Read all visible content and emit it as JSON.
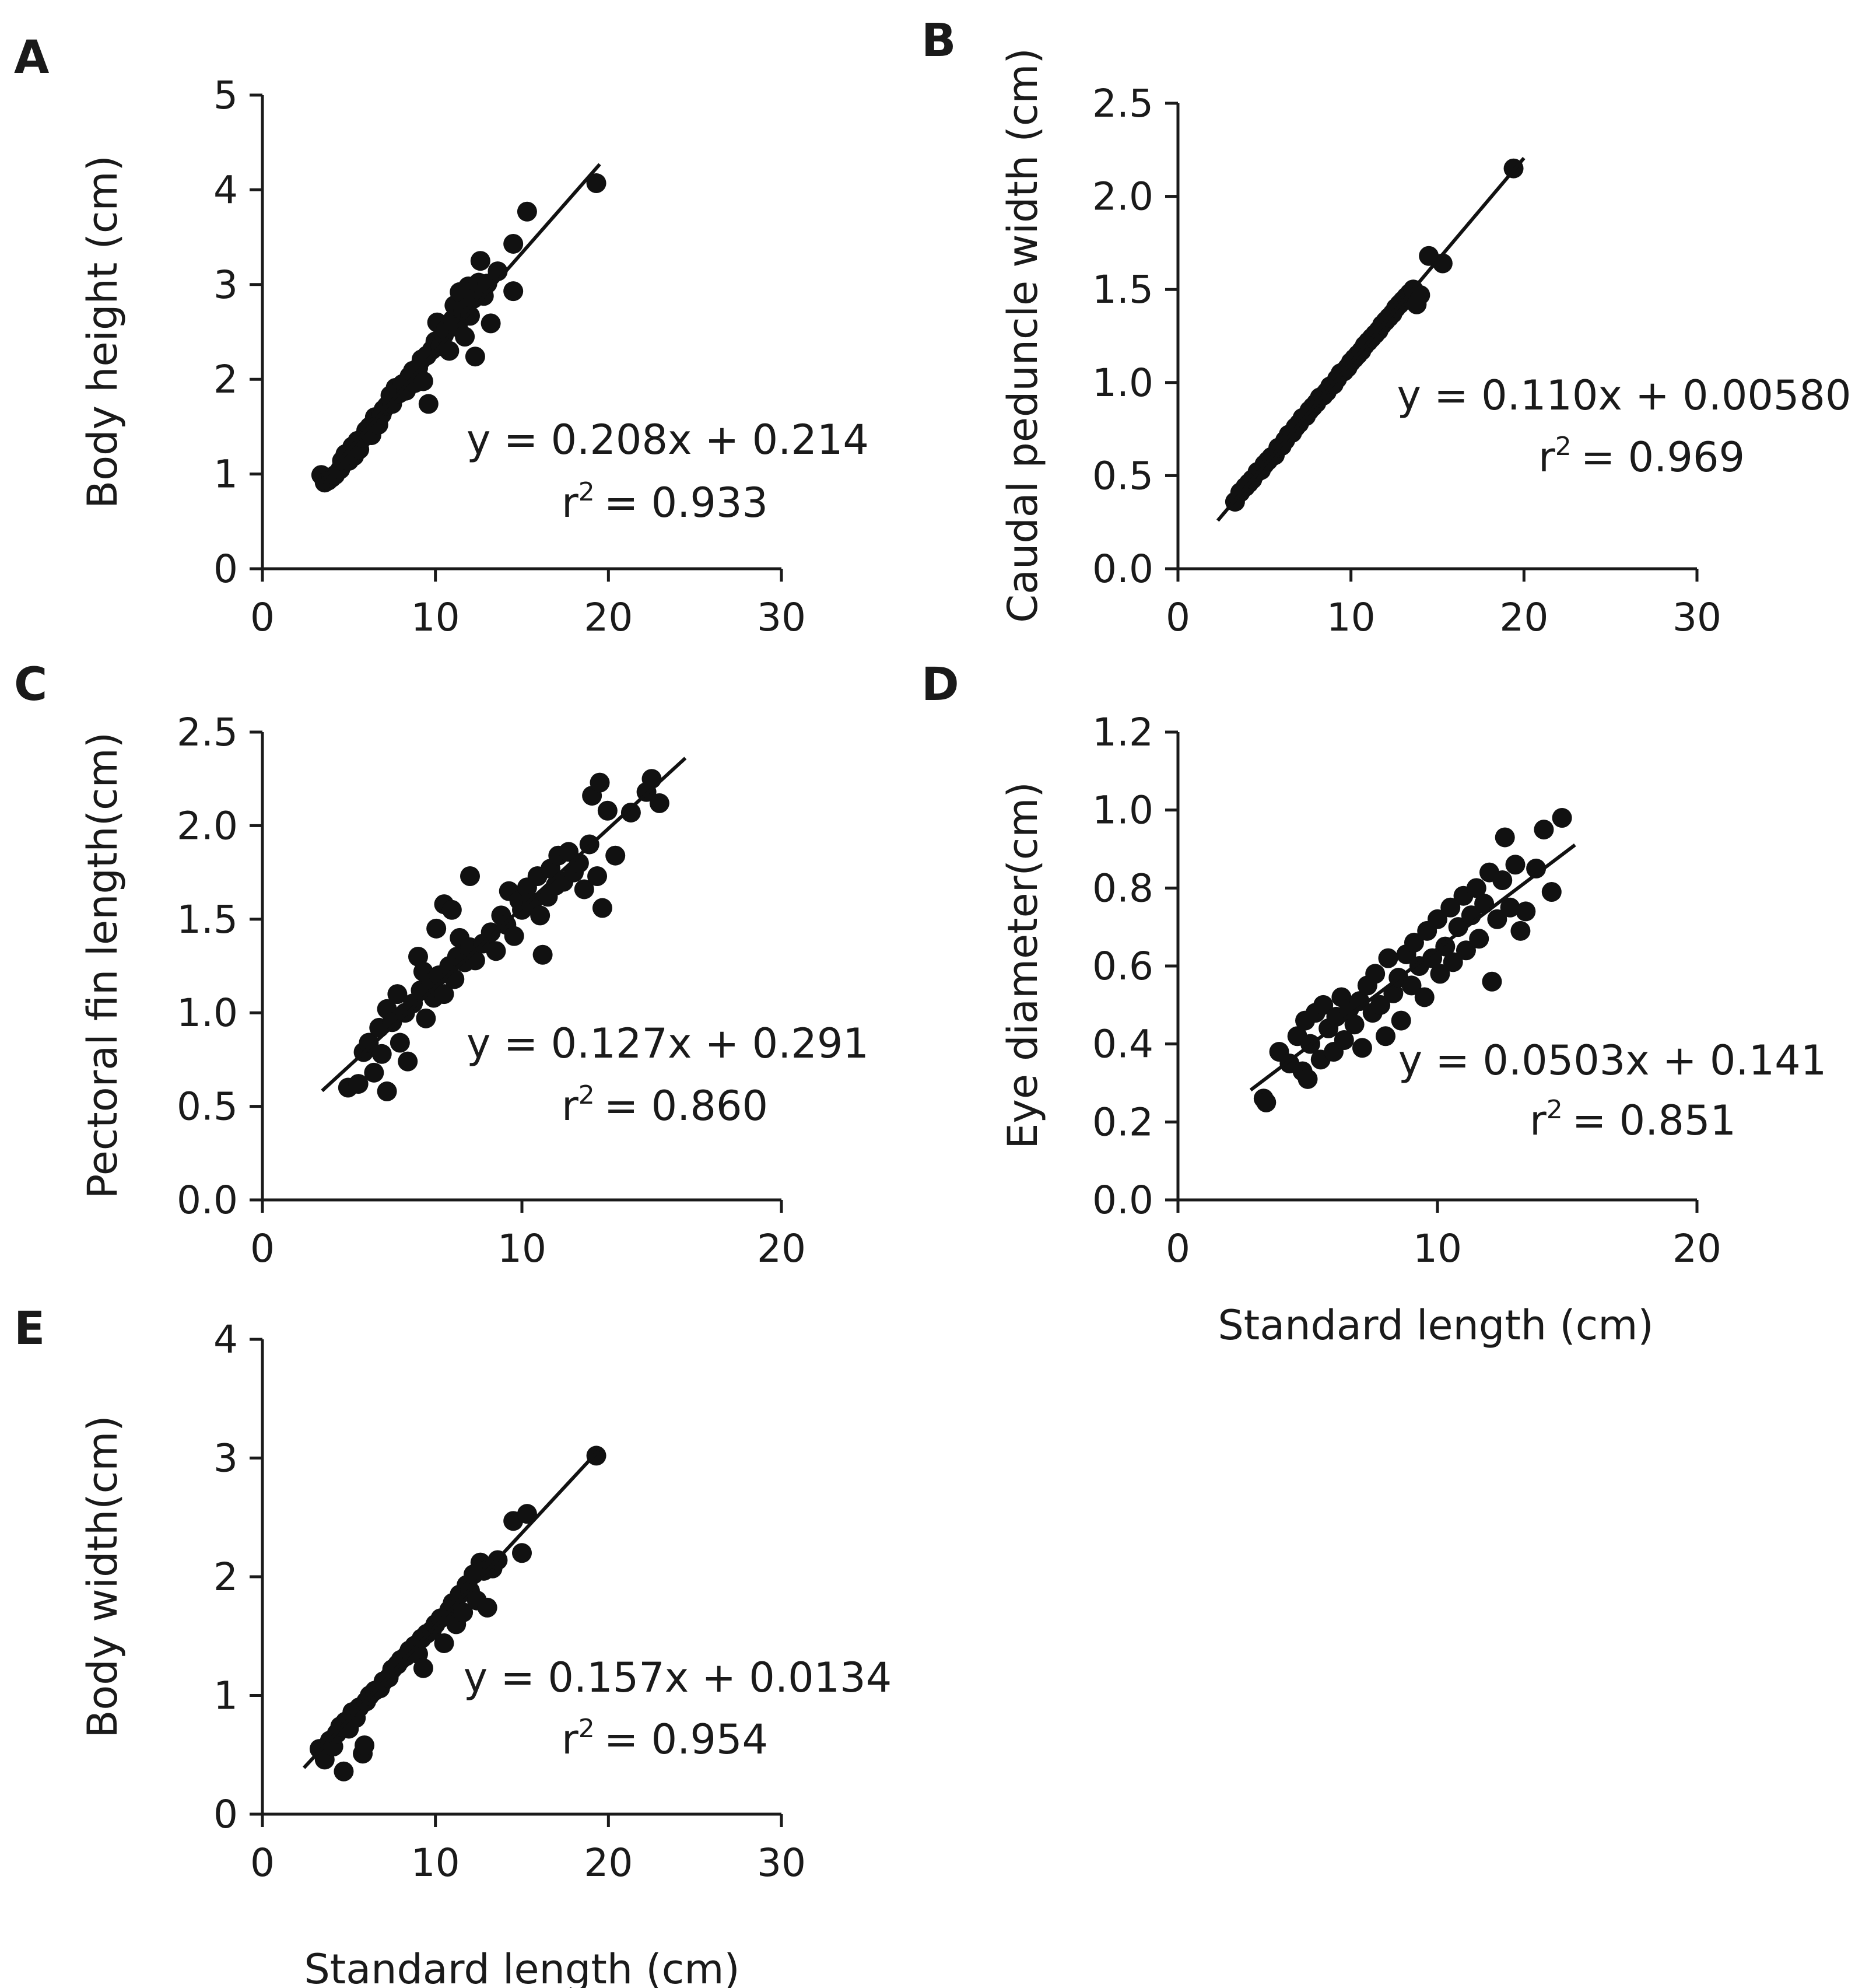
{
  "figure": {
    "xlabel_shared": "Standard length (cm)"
  },
  "chart_data": [
    {
      "panel": "A",
      "type": "scatter",
      "ylabel": "Body height (cm)",
      "xlabel": "",
      "xlim": [
        0,
        30
      ],
      "ylim": [
        0,
        5
      ],
      "xticks": [
        0,
        10,
        20,
        30
      ],
      "yticks": [
        0,
        1,
        2,
        3,
        4,
        5
      ],
      "ytick_labels": [
        "0",
        "1",
        "2",
        "3",
        "4",
        "5"
      ],
      "equation": "y = 0.208x + 0.214",
      "r2_label": "r",
      "r2_sup": "2",
      "r2_value": "= 0.933",
      "fit": {
        "slope": 0.208,
        "intercept": 0.214,
        "x_range": [
          3.5,
          19.5
        ]
      },
      "points": [
        [
          3.4,
          0.99
        ],
        [
          3.6,
          0.91
        ],
        [
          3.8,
          0.93
        ],
        [
          4.0,
          0.96
        ],
        [
          4.2,
          0.99
        ],
        [
          4.5,
          1.05
        ],
        [
          4.6,
          1.14
        ],
        [
          4.8,
          1.21
        ],
        [
          5.0,
          1.14
        ],
        [
          5.2,
          1.29
        ],
        [
          5.3,
          1.19
        ],
        [
          5.5,
          1.35
        ],
        [
          5.6,
          1.26
        ],
        [
          5.8,
          1.38
        ],
        [
          6.0,
          1.46
        ],
        [
          6.2,
          1.5
        ],
        [
          6.3,
          1.41
        ],
        [
          6.5,
          1.6
        ],
        [
          6.7,
          1.52
        ],
        [
          6.9,
          1.63
        ],
        [
          7.0,
          1.68
        ],
        [
          7.2,
          1.72
        ],
        [
          7.4,
          1.83
        ],
        [
          7.5,
          1.74
        ],
        [
          7.7,
          1.91
        ],
        [
          7.9,
          1.85
        ],
        [
          8.1,
          1.95
        ],
        [
          8.3,
          1.88
        ],
        [
          8.5,
          2.03
        ],
        [
          8.7,
          2.09
        ],
        [
          8.8,
          1.96
        ],
        [
          9.0,
          2.12
        ],
        [
          9.2,
          2.21
        ],
        [
          9.3,
          1.98
        ],
        [
          9.5,
          2.25
        ],
        [
          9.6,
          1.74
        ],
        [
          9.8,
          2.31
        ],
        [
          10.0,
          2.4
        ],
        [
          10.1,
          2.6
        ],
        [
          10.3,
          2.35
        ],
        [
          10.5,
          2.47
        ],
        [
          10.6,
          2.52
        ],
        [
          10.8,
          2.3
        ],
        [
          11.0,
          2.63
        ],
        [
          11.1,
          2.78
        ],
        [
          11.3,
          2.55
        ],
        [
          11.4,
          2.92
        ],
        [
          11.6,
          2.73
        ],
        [
          11.7,
          2.45
        ],
        [
          11.9,
          2.98
        ],
        [
          12.0,
          2.67
        ],
        [
          12.2,
          2.85
        ],
        [
          12.3,
          2.24
        ],
        [
          12.5,
          3.02
        ],
        [
          12.6,
          3.25
        ],
        [
          12.8,
          2.88
        ],
        [
          13.0,
          3.01
        ],
        [
          13.2,
          2.59
        ],
        [
          13.6,
          3.14
        ],
        [
          14.5,
          2.93
        ],
        [
          14.5,
          3.43
        ],
        [
          15.3,
          3.77
        ],
        [
          19.3,
          4.07
        ]
      ]
    },
    {
      "panel": "B",
      "type": "scatter",
      "ylabel": "Caudal peduncle width (cm)",
      "xlabel": "",
      "xlim": [
        0,
        30
      ],
      "ylim": [
        0,
        2.5
      ],
      "xticks": [
        0,
        10,
        20,
        30
      ],
      "yticks": [
        0,
        0.5,
        1.0,
        1.5,
        2.0,
        2.5
      ],
      "ytick_labels": [
        "0.0",
        "0.5",
        "1.0",
        "1.5",
        "2.0",
        "2.5"
      ],
      "equation": "y = 0.110x + 0.00580",
      "r2_label": "r",
      "r2_sup": "2",
      "r2_value": "= 0.969",
      "fit": {
        "slope": 0.11,
        "intercept": 0.0058,
        "x_range": [
          2.3,
          20.0
        ]
      },
      "points": [
        [
          3.3,
          0.36
        ],
        [
          3.6,
          0.41
        ],
        [
          3.9,
          0.44
        ],
        [
          4.1,
          0.46
        ],
        [
          4.3,
          0.48
        ],
        [
          4.6,
          0.52
        ],
        [
          4.8,
          0.53
        ],
        [
          5.0,
          0.56
        ],
        [
          5.2,
          0.58
        ],
        [
          5.4,
          0.6
        ],
        [
          5.6,
          0.61
        ],
        [
          5.8,
          0.65
        ],
        [
          6.0,
          0.66
        ],
        [
          6.2,
          0.69
        ],
        [
          6.4,
          0.72
        ],
        [
          6.6,
          0.73
        ],
        [
          6.8,
          0.76
        ],
        [
          7.0,
          0.78
        ],
        [
          7.2,
          0.81
        ],
        [
          7.4,
          0.82
        ],
        [
          7.6,
          0.85
        ],
        [
          7.8,
          0.87
        ],
        [
          8.0,
          0.89
        ],
        [
          8.2,
          0.92
        ],
        [
          8.4,
          0.93
        ],
        [
          8.6,
          0.95
        ],
        [
          8.8,
          0.98
        ],
        [
          9.0,
          0.99
        ],
        [
          9.2,
          1.02
        ],
        [
          9.4,
          1.05
        ],
        [
          9.6,
          1.06
        ],
        [
          9.8,
          1.08
        ],
        [
          10.0,
          1.11
        ],
        [
          10.2,
          1.13
        ],
        [
          10.4,
          1.15
        ],
        [
          10.6,
          1.17
        ],
        [
          10.8,
          1.2
        ],
        [
          11.0,
          1.22
        ],
        [
          11.2,
          1.24
        ],
        [
          11.4,
          1.26
        ],
        [
          11.6,
          1.28
        ],
        [
          11.8,
          1.31
        ],
        [
          12.0,
          1.33
        ],
        [
          12.2,
          1.35
        ],
        [
          12.4,
          1.37
        ],
        [
          12.6,
          1.4
        ],
        [
          12.8,
          1.42
        ],
        [
          13.0,
          1.44
        ],
        [
          13.2,
          1.46
        ],
        [
          13.4,
          1.48
        ],
        [
          13.6,
          1.5
        ],
        [
          13.8,
          1.42
        ],
        [
          14.0,
          1.47
        ],
        [
          14.5,
          1.68
        ],
        [
          15.3,
          1.64
        ],
        [
          19.4,
          2.15
        ]
      ]
    },
    {
      "panel": "C",
      "type": "scatter",
      "ylabel": "Pectoral fin length(cm)",
      "xlabel": "",
      "xlim": [
        0,
        20
      ],
      "ylim": [
        0,
        2.5
      ],
      "xticks": [
        0,
        10,
        20
      ],
      "yticks": [
        0,
        0.5,
        1.0,
        1.5,
        2.0,
        2.5
      ],
      "ytick_labels": [
        "0.0",
        "0.5",
        "1.0",
        "1.5",
        "2.0",
        "2.5"
      ],
      "equation": "y = 0.127x + 0.291",
      "r2_label": "r",
      "r2_sup": "2",
      "r2_value": "= 0.860",
      "fit": {
        "slope": 0.127,
        "intercept": 0.291,
        "x_range": [
          2.3,
          16.3
        ]
      },
      "points": [
        [
          3.3,
          0.6
        ],
        [
          3.7,
          0.62
        ],
        [
          3.9,
          0.79
        ],
        [
          4.1,
          0.84
        ],
        [
          4.3,
          0.68
        ],
        [
          4.5,
          0.92
        ],
        [
          4.6,
          0.78
        ],
        [
          4.8,
          0.58
        ],
        [
          4.8,
          1.02
        ],
        [
          5.0,
          0.95
        ],
        [
          5.2,
          1.1
        ],
        [
          5.3,
          0.84
        ],
        [
          5.5,
          1.0
        ],
        [
          5.6,
          0.74
        ],
        [
          5.8,
          1.05
        ],
        [
          6.0,
          1.3
        ],
        [
          6.1,
          1.12
        ],
        [
          6.2,
          1.22
        ],
        [
          6.3,
          0.97
        ],
        [
          6.5,
          1.16
        ],
        [
          6.6,
          1.08
        ],
        [
          6.7,
          1.45
        ],
        [
          6.8,
          1.2
        ],
        [
          7.0,
          1.1
        ],
        [
          7.0,
          1.58
        ],
        [
          7.2,
          1.25
        ],
        [
          7.3,
          1.55
        ],
        [
          7.4,
          1.18
        ],
        [
          7.5,
          1.3
        ],
        [
          7.6,
          1.4
        ],
        [
          7.8,
          1.27
        ],
        [
          8.0,
          1.73
        ],
        [
          8.0,
          1.35
        ],
        [
          8.2,
          1.28
        ],
        [
          8.5,
          1.37
        ],
        [
          8.8,
          1.43
        ],
        [
          9.0,
          1.33
        ],
        [
          9.2,
          1.52
        ],
        [
          9.4,
          1.47
        ],
        [
          9.5,
          1.65
        ],
        [
          9.7,
          1.41
        ],
        [
          9.9,
          1.6
        ],
        [
          10.0,
          1.55
        ],
        [
          10.2,
          1.67
        ],
        [
          10.4,
          1.59
        ],
        [
          10.6,
          1.73
        ],
        [
          10.7,
          1.52
        ],
        [
          10.8,
          1.31
        ],
        [
          11.0,
          1.62
        ],
        [
          11.1,
          1.77
        ],
        [
          11.3,
          1.68
        ],
        [
          11.4,
          1.84
        ],
        [
          11.6,
          1.7
        ],
        [
          11.8,
          1.86
        ],
        [
          12.0,
          1.75
        ],
        [
          12.2,
          1.8
        ],
        [
          12.4,
          1.66
        ],
        [
          12.6,
          1.9
        ],
        [
          12.7,
          2.16
        ],
        [
          12.9,
          1.73
        ],
        [
          13.0,
          2.23
        ],
        [
          13.1,
          1.56
        ],
        [
          13.3,
          2.08
        ],
        [
          13.6,
          1.84
        ],
        [
          14.2,
          2.07
        ],
        [
          14.8,
          2.18
        ],
        [
          15.0,
          2.25
        ],
        [
          15.3,
          2.12
        ]
      ]
    },
    {
      "panel": "D",
      "type": "scatter",
      "ylabel": "Eye diameter(cm)",
      "xlabel": "Standard length (cm)",
      "xlim": [
        0,
        20
      ],
      "ylim": [
        0,
        1.2
      ],
      "xticks": [
        0,
        10,
        20
      ],
      "yticks": [
        0,
        0.2,
        0.4,
        0.6,
        0.8,
        1.0,
        1.2
      ],
      "ytick_labels": [
        "0.0",
        "0.2",
        "0.4",
        "0.6",
        "0.8",
        "1.0",
        "1.2"
      ],
      "equation": "y = 0.0503x + 0.141",
      "r2_label": "r",
      "r2_sup": "2",
      "r2_value": "= 0.851",
      "fit": {
        "slope": 0.0503,
        "intercept": 0.141,
        "x_range": [
          2.8,
          15.3
        ]
      },
      "points": [
        [
          3.3,
          0.26
        ],
        [
          3.4,
          0.25
        ],
        [
          3.9,
          0.38
        ],
        [
          4.3,
          0.35
        ],
        [
          4.6,
          0.42
        ],
        [
          4.8,
          0.33
        ],
        [
          4.9,
          0.46
        ],
        [
          5.0,
          0.31
        ],
        [
          5.1,
          0.4
        ],
        [
          5.3,
          0.48
        ],
        [
          5.5,
          0.36
        ],
        [
          5.6,
          0.5
        ],
        [
          5.8,
          0.44
        ],
        [
          6.0,
          0.38
        ],
        [
          6.1,
          0.47
        ],
        [
          6.3,
          0.52
        ],
        [
          6.4,
          0.41
        ],
        [
          6.6,
          0.49
        ],
        [
          6.8,
          0.45
        ],
        [
          7.0,
          0.51
        ],
        [
          7.1,
          0.39
        ],
        [
          7.3,
          0.55
        ],
        [
          7.5,
          0.48
        ],
        [
          7.6,
          0.58
        ],
        [
          7.8,
          0.5
        ],
        [
          8.0,
          0.42
        ],
        [
          8.1,
          0.62
        ],
        [
          8.3,
          0.53
        ],
        [
          8.5,
          0.57
        ],
        [
          8.6,
          0.46
        ],
        [
          8.8,
          0.63
        ],
        [
          9.0,
          0.55
        ],
        [
          9.1,
          0.66
        ],
        [
          9.3,
          0.6
        ],
        [
          9.5,
          0.52
        ],
        [
          9.6,
          0.69
        ],
        [
          9.8,
          0.62
        ],
        [
          10.0,
          0.72
        ],
        [
          10.1,
          0.58
        ],
        [
          10.3,
          0.65
        ],
        [
          10.5,
          0.75
        ],
        [
          10.6,
          0.61
        ],
        [
          10.8,
          0.7
        ],
        [
          11.0,
          0.78
        ],
        [
          11.1,
          0.64
        ],
        [
          11.3,
          0.73
        ],
        [
          11.5,
          0.8
        ],
        [
          11.6,
          0.67
        ],
        [
          11.8,
          0.76
        ],
        [
          12.0,
          0.84
        ],
        [
          12.1,
          0.56
        ],
        [
          12.3,
          0.72
        ],
        [
          12.5,
          0.82
        ],
        [
          12.6,
          0.93
        ],
        [
          12.8,
          0.75
        ],
        [
          13.0,
          0.86
        ],
        [
          13.2,
          0.69
        ],
        [
          13.4,
          0.74
        ],
        [
          13.8,
          0.85
        ],
        [
          14.1,
          0.95
        ],
        [
          14.4,
          0.79
        ],
        [
          14.8,
          0.98
        ]
      ]
    },
    {
      "panel": "E",
      "type": "scatter",
      "ylabel": "Body width(cm)",
      "xlabel": "Standard length (cm)",
      "xlim": [
        0,
        30
      ],
      "ylim": [
        0,
        4
      ],
      "xticks": [
        0,
        10,
        20,
        30
      ],
      "yticks": [
        0,
        1,
        2,
        3,
        4
      ],
      "ytick_labels": [
        "0",
        "1",
        "2",
        "3",
        "4"
      ],
      "equation": "y = 0.157x + 0.0134",
      "r2_label": "r",
      "r2_sup": "2",
      "r2_value": "= 0.954",
      "fit": {
        "slope": 0.157,
        "intercept": 0.0134,
        "x_range": [
          2.4,
          19.5
        ]
      },
      "points": [
        [
          3.3,
          0.55
        ],
        [
          3.6,
          0.46
        ],
        [
          3.9,
          0.62
        ],
        [
          4.1,
          0.57
        ],
        [
          4.3,
          0.68
        ],
        [
          4.5,
          0.74
        ],
        [
          4.7,
          0.36
        ],
        [
          4.8,
          0.78
        ],
        [
          5.0,
          0.72
        ],
        [
          5.2,
          0.86
        ],
        [
          5.4,
          0.81
        ],
        [
          5.6,
          0.9
        ],
        [
          5.8,
          0.51
        ],
        [
          5.9,
          0.58
        ],
        [
          6.0,
          0.95
        ],
        [
          6.2,
          1.0
        ],
        [
          6.5,
          1.04
        ],
        [
          6.8,
          1.06
        ],
        [
          7.0,
          1.12
        ],
        [
          7.3,
          1.15
        ],
        [
          7.5,
          1.22
        ],
        [
          7.8,
          1.26
        ],
        [
          8.0,
          1.3
        ],
        [
          8.3,
          1.33
        ],
        [
          8.5,
          1.38
        ],
        [
          8.8,
          1.42
        ],
        [
          9.0,
          1.35
        ],
        [
          9.2,
          1.48
        ],
        [
          9.3,
          1.23
        ],
        [
          9.5,
          1.52
        ],
        [
          9.8,
          1.55
        ],
        [
          10.0,
          1.6
        ],
        [
          10.3,
          1.65
        ],
        [
          10.5,
          1.44
        ],
        [
          10.8,
          1.72
        ],
        [
          11.0,
          1.78
        ],
        [
          11.2,
          1.6
        ],
        [
          11.4,
          1.85
        ],
        [
          11.6,
          1.7
        ],
        [
          11.8,
          1.93
        ],
        [
          12.0,
          1.88
        ],
        [
          12.2,
          2.02
        ],
        [
          12.4,
          1.8
        ],
        [
          12.6,
          2.12
        ],
        [
          12.8,
          2.05
        ],
        [
          13.0,
          1.74
        ],
        [
          13.3,
          2.07
        ],
        [
          13.6,
          2.14
        ],
        [
          14.5,
          2.47
        ],
        [
          15.0,
          2.2
        ],
        [
          15.3,
          2.53
        ],
        [
          19.3,
          3.02
        ]
      ]
    }
  ]
}
